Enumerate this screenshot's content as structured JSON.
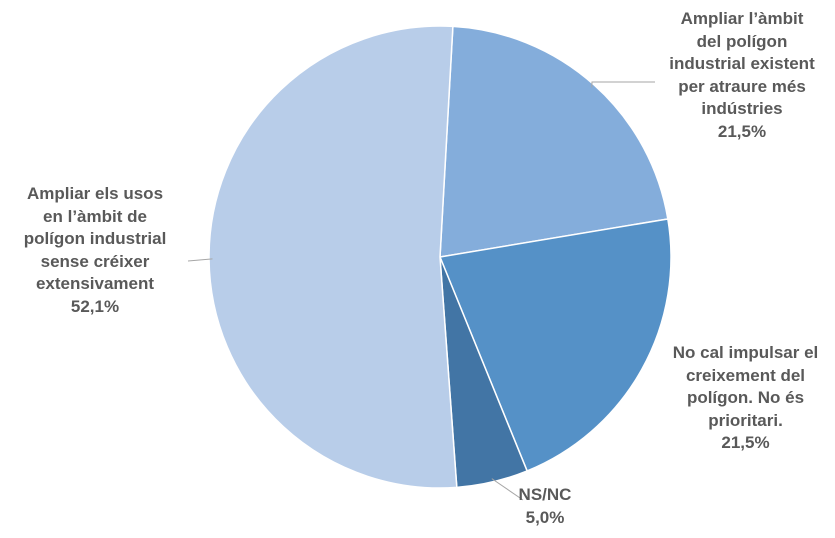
{
  "chart_data": {
    "type": "pie",
    "start_angle_deg": 3.2,
    "direction": "clockwise",
    "slices": [
      {
        "label_lines": [
          "Ampliar l’àmbit",
          "del polígon",
          "industrial  existent",
          "per atraure més",
          "indústries"
        ],
        "value_label": "21,5%",
        "value": 21.5,
        "color": "#84ADDB"
      },
      {
        "label_lines": [
          "No cal impulsar  el",
          "creixement del",
          "polígon. No és",
          "prioritari."
        ],
        "value_label": "21,5%",
        "value": 21.5,
        "color": "#5591C7"
      },
      {
        "label_lines": [
          "NS/NC"
        ],
        "value_label": "5,0%",
        "value": 5.0,
        "color": "#4275A5"
      },
      {
        "label_lines": [
          "Ampliar els usos",
          "en l’àmbit de",
          "polígon industrial",
          "sense créixer",
          "extensivament"
        ],
        "value_label": "52,1%",
        "value": 52.1,
        "color": "#B8CDE9"
      }
    ],
    "leader_color": "#A6A6A6",
    "text_color": "#595959"
  }
}
